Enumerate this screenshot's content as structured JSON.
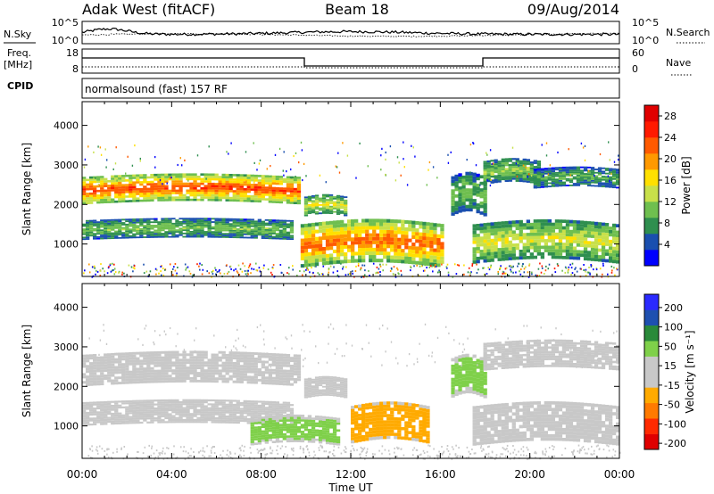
{
  "header": {
    "station": "Adak West (fitACF)",
    "beam": "Beam 18",
    "date": "09/Aug/2014"
  },
  "strip": {
    "nsky_label": "N.Sky",
    "nsearch_label": "N.Search",
    "freq_label_line1": "Freq.",
    "freq_label_line2": "[MHz]",
    "nave_label": "Nave",
    "cpid_label": "CPID",
    "cpid_text": "normalsound (fast) 157 RF",
    "noise_ticks_left": [
      "10^5",
      "10^0"
    ],
    "noise_ticks_right": [
      "10^5",
      "10^0"
    ],
    "freq_ticks": [
      "18",
      "8"
    ],
    "nave_ticks": [
      "60",
      "0"
    ]
  },
  "xaxis": {
    "label": "Time UT",
    "ticks": [
      "00:00",
      "04:00",
      "08:00",
      "12:00",
      "16:00",
      "20:00",
      "00:00"
    ]
  },
  "colors": {
    "power_scale": [
      "#0000ff",
      "#1a4faf",
      "#2f8f4f",
      "#6fbf4f",
      "#c8e04a",
      "#ffe000",
      "#ff9900",
      "#ff5a00",
      "#ff1a00",
      "#e00000"
    ],
    "velocity_scale": [
      "#2a2aff",
      "#1e50b0",
      "#2a8a3a",
      "#7fd04a",
      "#c8c8c8",
      "#c8c8c8",
      "#ffaa00",
      "#ff7a00",
      "#ff2a00",
      "#e00000"
    ]
  },
  "chart_data": [
    {
      "type": "heatmap",
      "title": "",
      "xlabel": "Time UT",
      "ylabel": "Slant Range [km]",
      "ylim": [
        180,
        4600
      ],
      "yticks": [
        "1000",
        "2000",
        "3000",
        "4000"
      ],
      "colorbar": {
        "label": "Power [dB]",
        "ticks": [
          "4",
          "8",
          "12",
          "16",
          "20",
          "24",
          "28"
        ],
        "range": [
          0,
          30
        ]
      },
      "bands": [
        {
          "t": [
            0.0,
            9.8
          ],
          "r": [
            2000,
            2700
          ],
          "value": 22
        },
        {
          "t": [
            10.0,
            11.8
          ],
          "r": [
            1700,
            2200
          ],
          "value": 14
        },
        {
          "t": [
            0.0,
            9.5
          ],
          "r": [
            1100,
            1600
          ],
          "value": 10
        },
        {
          "t": [
            9.8,
            16.2
          ],
          "r": [
            400,
            1500
          ],
          "value": 21
        },
        {
          "t": [
            16.5,
            18.0
          ],
          "r": [
            1700,
            2700
          ],
          "value": 10
        },
        {
          "t": [
            18.0,
            20.5
          ],
          "r": [
            2500,
            3100
          ],
          "value": 11
        },
        {
          "t": [
            20.2,
            24.0
          ],
          "r": [
            2400,
            2900
          ],
          "value": 9
        },
        {
          "t": [
            17.5,
            24.0
          ],
          "r": [
            500,
            1500
          ],
          "value": 14
        }
      ]
    },
    {
      "type": "heatmap",
      "title": "",
      "xlabel": "Time UT",
      "ylabel": "Slant Range [km]",
      "ylim": [
        180,
        4600
      ],
      "yticks": [
        "1000",
        "2000",
        "3000",
        "4000"
      ],
      "colorbar": {
        "label": "Velocity [m s⁻¹]",
        "ticks": [
          "200",
          "100",
          "50",
          "15",
          "-15",
          "-50",
          "-100",
          "-200"
        ],
        "range": [
          -250,
          250
        ]
      },
      "bands": [
        {
          "t": [
            0.0,
            9.8
          ],
          "r": [
            2000,
            2800
          ],
          "value": 0
        },
        {
          "t": [
            10.0,
            11.8
          ],
          "r": [
            1700,
            2200
          ],
          "value": 0
        },
        {
          "t": [
            0.0,
            9.5
          ],
          "r": [
            1000,
            1600
          ],
          "value": 0
        },
        {
          "t": [
            7.5,
            11.5
          ],
          "r": [
            500,
            1200
          ],
          "value": 25
        },
        {
          "t": [
            12.0,
            15.5
          ],
          "r": [
            550,
            1500
          ],
          "value": -30
        },
        {
          "t": [
            16.5,
            18.0
          ],
          "r": [
            1700,
            2700
          ],
          "value": 25
        },
        {
          "t": [
            18.0,
            24.0
          ],
          "r": [
            2400,
            3100
          ],
          "value": 0
        },
        {
          "t": [
            17.5,
            24.0
          ],
          "r": [
            500,
            1500
          ],
          "value": 0
        }
      ]
    }
  ]
}
